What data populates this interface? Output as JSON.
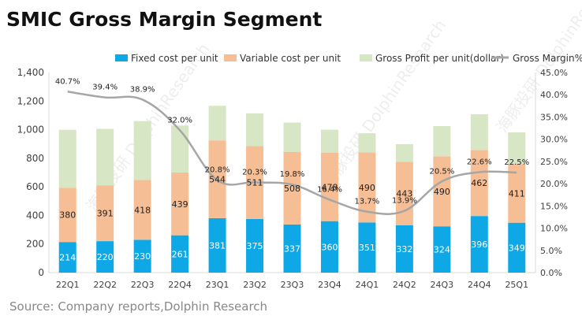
{
  "colors": {
    "fixed": "#0fa8e6",
    "variable": "#f6be94",
    "profit": "#d7e6c4",
    "line": "#a6a6a6"
  },
  "chart_data": {
    "type": "bar",
    "stacked": true,
    "title": "SMIC Gross Margin Segment",
    "source": "Source: Company reports,Dolphin Research",
    "watermark": "海豚投研 DolphinResearch",
    "categories": [
      "22Q1",
      "22Q2",
      "22Q3",
      "22Q4",
      "23Q1",
      "23Q2",
      "23Q3",
      "23Q4",
      "24Q1",
      "24Q2",
      "24Q3",
      "24Q4",
      "25Q1"
    ],
    "series": [
      {
        "name": "Fixed cost per unit",
        "axis": "left",
        "labeled": true,
        "values": [
          214,
          220,
          230,
          261,
          381,
          375,
          337,
          360,
          351,
          332,
          324,
          396,
          349
        ]
      },
      {
        "name": "Variable cost per unit",
        "axis": "left",
        "labeled": true,
        "values": [
          380,
          391,
          418,
          439,
          544,
          511,
          508,
          478,
          490,
          443,
          490,
          462,
          411
        ]
      },
      {
        "name": "Gross Profit per unit(dollar)",
        "axis": "left",
        "labeled": false,
        "values": [
          405,
          395,
          412,
          329,
          242,
          228,
          205,
          162,
          134,
          124,
          211,
          250,
          221
        ]
      },
      {
        "name": "Gross Margin%",
        "type": "line",
        "axis": "right",
        "values": [
          40.7,
          39.4,
          38.9,
          32.0,
          20.8,
          20.3,
          19.8,
          16.4,
          13.7,
          13.9,
          20.5,
          22.6,
          22.5
        ],
        "labels": [
          "40.7%",
          "39.4%",
          "38.9%",
          "32.0%",
          "20.8%",
          "20.3%",
          "19.8%",
          "16.4%",
          "13.7%",
          "13.9%",
          "20.5%",
          "22.6%",
          "22.5%"
        ]
      }
    ],
    "ylim": [
      0,
      1400
    ],
    "y_ticks": [
      "0",
      "200",
      "400",
      "600",
      "800",
      "1,000",
      "1,200",
      "1,400"
    ],
    "y_tick_values": [
      0,
      200,
      400,
      600,
      800,
      1000,
      1200,
      1400
    ],
    "y2lim": [
      0,
      45
    ],
    "y2_ticks": [
      "0.0%",
      "5.0%",
      "10.0%",
      "15.0%",
      "20.0%",
      "25.0%",
      "30.0%",
      "35.0%",
      "40.0%",
      "45.0%"
    ],
    "y2_tick_values": [
      0,
      5,
      10,
      15,
      20,
      25,
      30,
      35,
      40,
      45
    ],
    "legend": "top"
  }
}
